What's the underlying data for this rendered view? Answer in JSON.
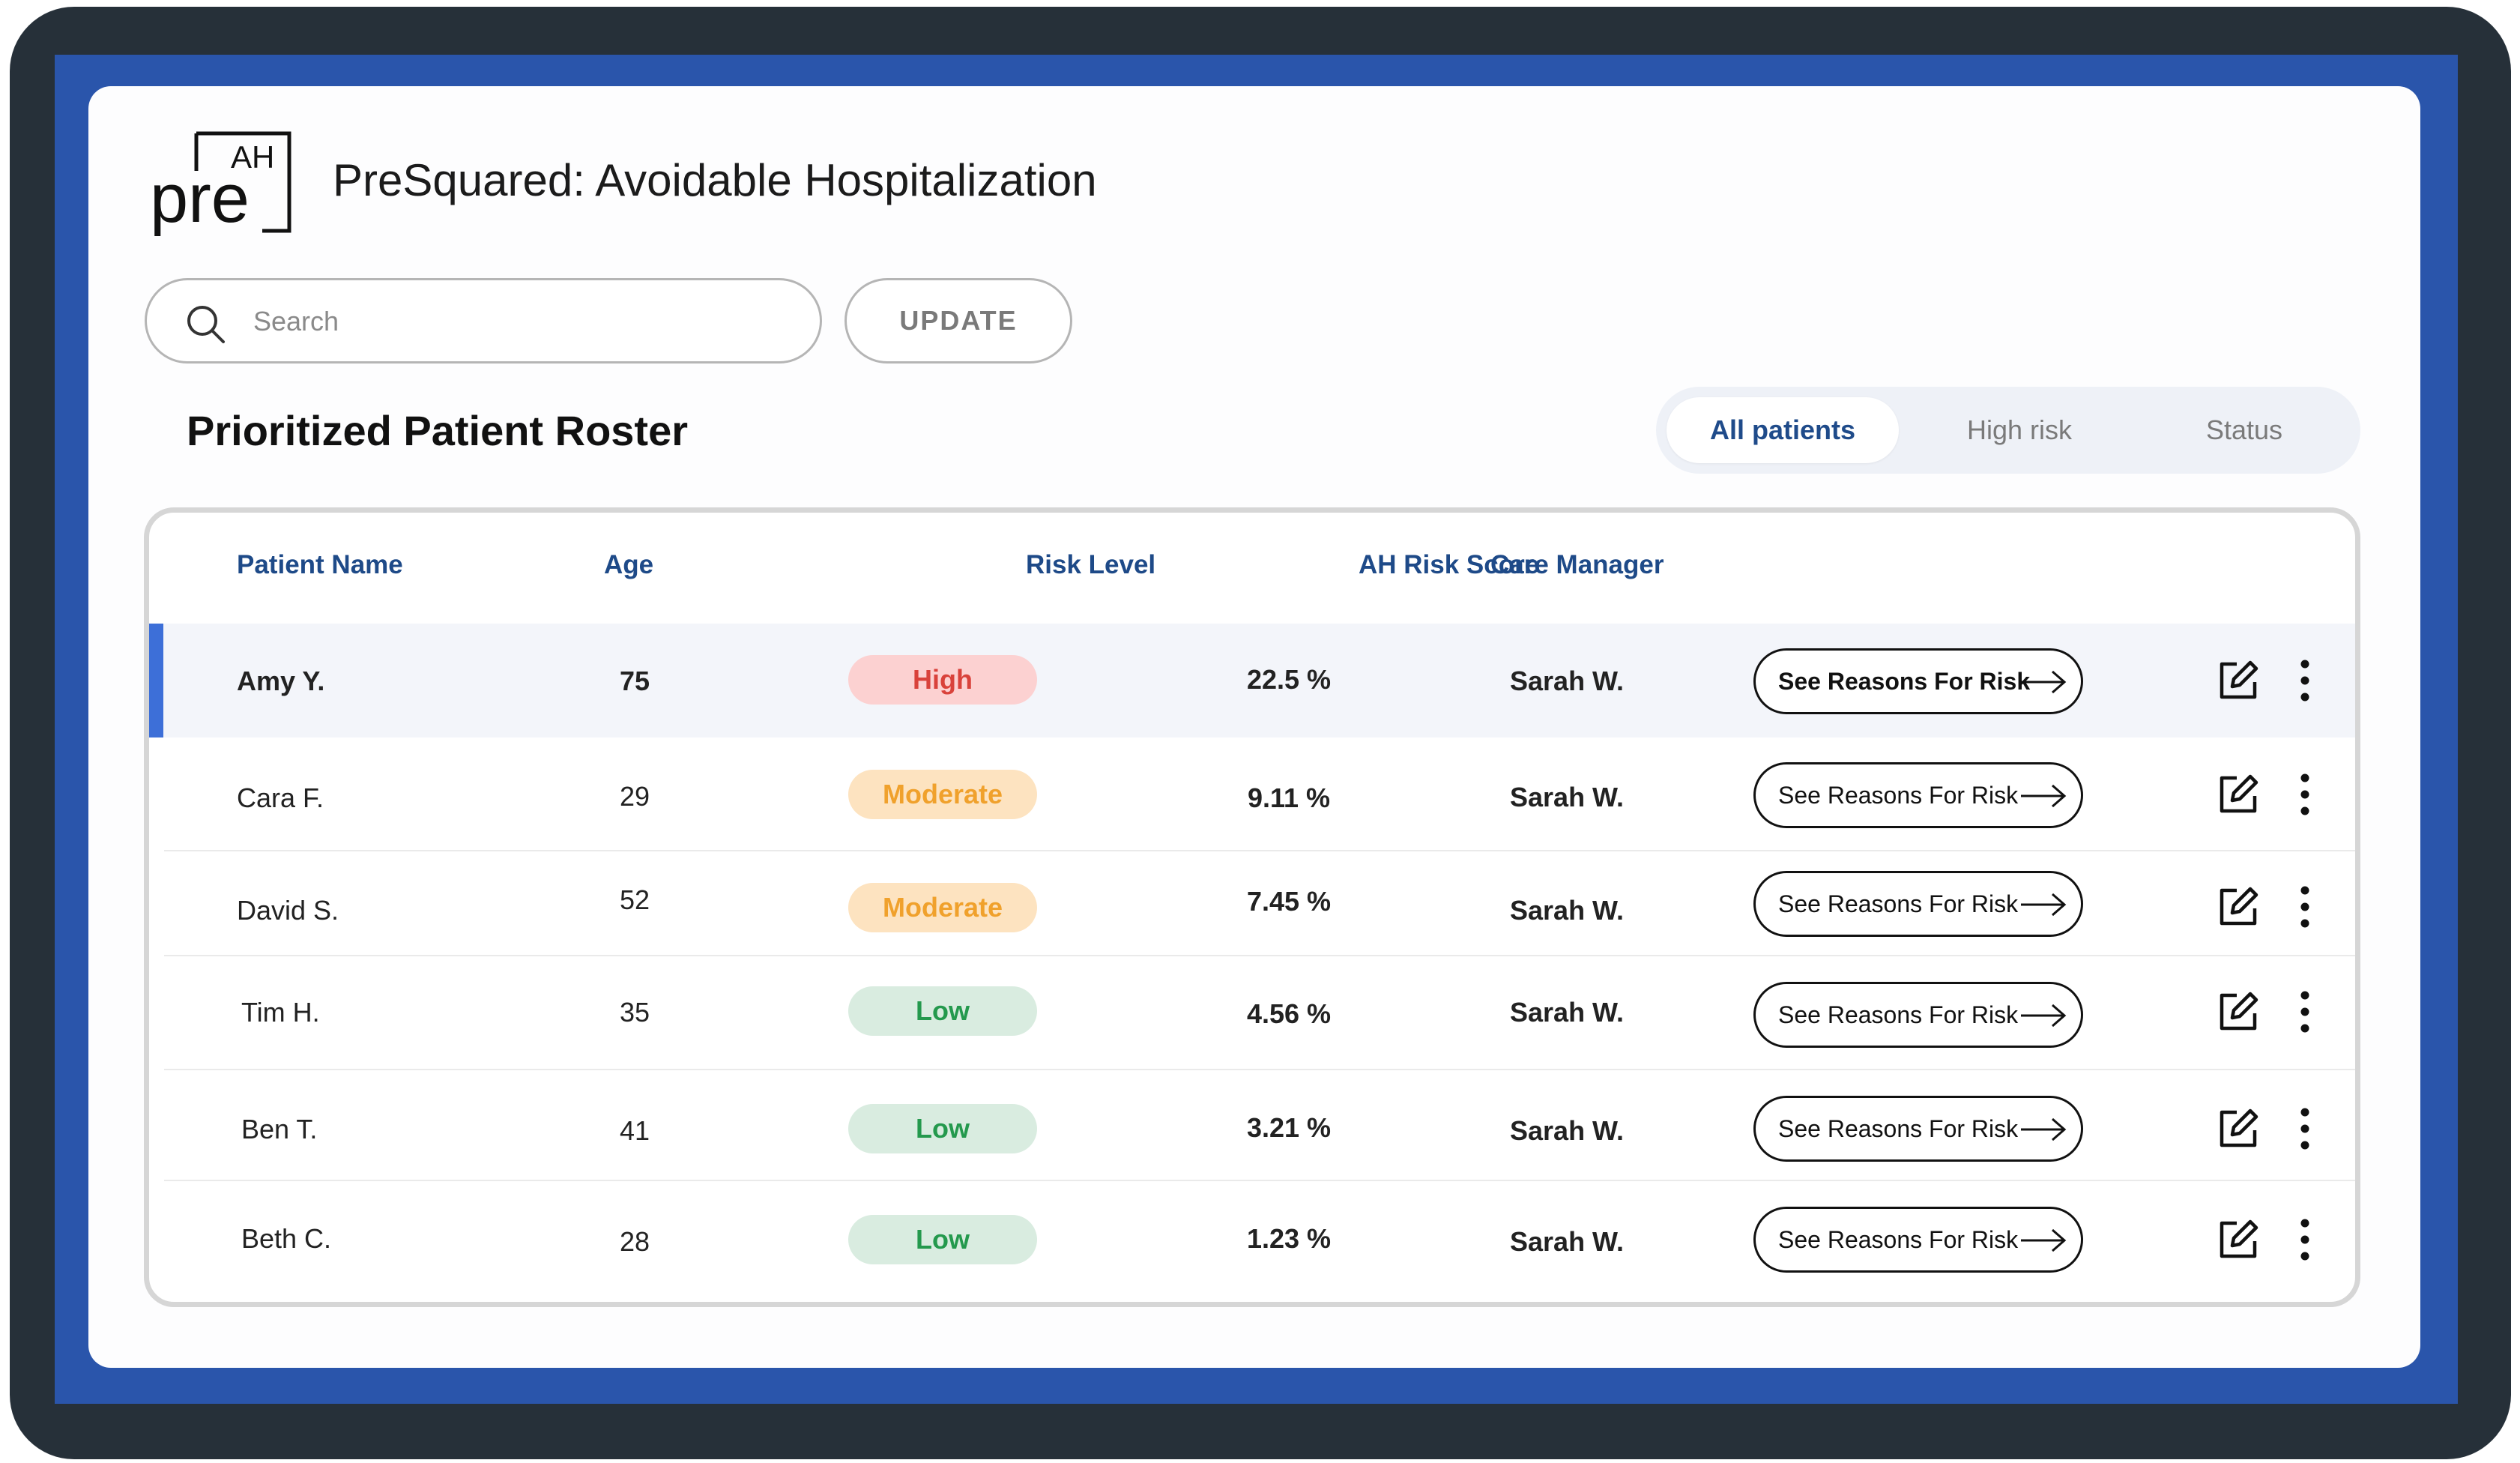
{
  "header": {
    "logo_top": "AH",
    "logo_bottom": "pre",
    "title": "PreSquared: Avoidable Hospitalization"
  },
  "search": {
    "placeholder": "Search",
    "value": ""
  },
  "update_label": "UPDATE",
  "roster_title": "Prioritized Patient Roster",
  "tabs": [
    {
      "label": "All patients",
      "active": true
    },
    {
      "label": "High risk",
      "active": false
    },
    {
      "label": "Status",
      "active": false
    }
  ],
  "columns": {
    "patient_name": "Patient Name",
    "age": "Age",
    "risk_level": "Risk Level",
    "risk_score": "AH Risk Score",
    "care_manager": "Care Manager"
  },
  "rows": [
    {
      "name": "Amy Y.",
      "age": "75",
      "risk": "High",
      "risk_class": "high",
      "score": "22.5 %",
      "manager": "Sarah W.",
      "action": "See Reasons For Risk",
      "selected": true
    },
    {
      "name": "Cara F.",
      "age": "29",
      "risk": "Moderate",
      "risk_class": "moderate",
      "score": "9.11 %",
      "manager": "Sarah W.",
      "action": "See Reasons For Risk",
      "selected": false
    },
    {
      "name": "David S.",
      "age": "52",
      "risk": "Moderate",
      "risk_class": "moderate",
      "score": "7.45 %",
      "manager": "Sarah W.",
      "action": "See Reasons For Risk",
      "selected": false
    },
    {
      "name": "Tim H.",
      "age": "35",
      "risk": "Low",
      "risk_class": "low",
      "score": "4.56 %",
      "manager": "Sarah W.",
      "action": "See Reasons For Risk",
      "selected": false
    },
    {
      "name": "Ben T.",
      "age": "41",
      "risk": "Low",
      "risk_class": "low",
      "score": "3.21 %",
      "manager": "Sarah W.",
      "action": "See Reasons For Risk",
      "selected": false
    },
    {
      "name": "Beth C.",
      "age": "28",
      "risk": "Low",
      "risk_class": "low",
      "score": "1.23 %",
      "manager": "Sarah W.",
      "action": "See Reasons For Risk",
      "selected": false
    }
  ],
  "colors": {
    "device_bezel": "#263039",
    "screen_blue": "#2a55ab",
    "accent_blue": "#3d6fd8",
    "header_text_blue": "#1e4a88",
    "high": "#d9423b",
    "moderate": "#f0a12c",
    "low": "#24994d"
  },
  "icons": {
    "search": "search-icon",
    "reasons_arrow": "arrow-right-icon",
    "edit": "edit-icon",
    "more": "more-vertical-icon"
  }
}
